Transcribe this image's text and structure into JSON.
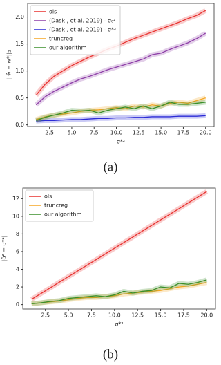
{
  "chart_data": [
    {
      "type": "line",
      "caption": "(a)",
      "x_label": "σ*²",
      "y_label": "||ŵ − w*||₂",
      "legend": "upper left",
      "x": [
        1,
        2,
        3,
        4,
        5,
        6,
        7,
        8,
        9,
        10,
        11,
        12,
        13,
        14,
        15,
        16,
        17,
        18,
        19,
        20
      ],
      "xlim": [
        0.05,
        20.95
      ],
      "ylim": [
        -0.03,
        2.25
      ],
      "xticks": [
        2.5,
        {
          "value": 5,
          "label": "5.0"
        },
        7.5,
        {
          "value": 10,
          "label": "10.0"
        },
        12.5,
        {
          "value": 15,
          "label": "15.0"
        },
        17.5,
        {
          "value": 20,
          "label": "20.0"
        }
      ],
      "yticks": [
        {
          "value": 0,
          "label": "0.0"
        },
        0.5,
        {
          "value": 1,
          "label": "1.0"
        },
        1.5,
        {
          "value": 2,
          "label": "2.0"
        }
      ],
      "series": [
        {
          "name": "ols",
          "color": "#e8312f",
          "values": [
            0.55,
            0.75,
            0.9,
            1.0,
            1.1,
            1.18,
            1.26,
            1.33,
            1.4,
            1.46,
            1.53,
            1.6,
            1.66,
            1.72,
            1.78,
            1.84,
            1.9,
            1.97,
            2.03,
            2.12
          ]
        },
        {
          "name": "(Dask , et al. 2019) - σ₀²",
          "color": "#8e3fa8",
          "values": [
            0.37,
            0.52,
            0.62,
            0.7,
            0.78,
            0.85,
            0.9,
            0.96,
            1.02,
            1.07,
            1.12,
            1.17,
            1.22,
            1.3,
            1.33,
            1.4,
            1.46,
            1.52,
            1.6,
            1.7
          ]
        },
        {
          "name": "(Dask , et al. 2019) - σ*²",
          "color": "#2b2bd6",
          "values": [
            0.07,
            0.08,
            0.08,
            0.09,
            0.1,
            0.1,
            0.11,
            0.12,
            0.12,
            0.13,
            0.13,
            0.14,
            0.14,
            0.15,
            0.15,
            0.15,
            0.16,
            0.16,
            0.16,
            0.17
          ]
        },
        {
          "name": "truncreg",
          "color": "#f5a623",
          "values": [
            0.1,
            0.15,
            0.18,
            0.2,
            0.22,
            0.25,
            0.27,
            0.28,
            0.3,
            0.32,
            0.3,
            0.35,
            0.33,
            0.37,
            0.35,
            0.4,
            0.42,
            0.4,
            0.45,
            0.5
          ]
        },
        {
          "name": "our algorithm",
          "color": "#3a8f2a",
          "values": [
            0.08,
            0.14,
            0.18,
            0.22,
            0.27,
            0.26,
            0.27,
            0.22,
            0.27,
            0.3,
            0.33,
            0.3,
            0.35,
            0.3,
            0.35,
            0.42,
            0.38,
            0.38,
            0.4,
            0.42
          ]
        }
      ]
    },
    {
      "type": "line",
      "caption": "(b)",
      "x_label": "σ*²",
      "y_label": "|σ̂² − σ*²|",
      "legend": "upper left",
      "x": [
        1,
        2,
        3,
        4,
        5,
        6,
        7,
        8,
        9,
        10,
        11,
        12,
        13,
        14,
        15,
        16,
        17,
        18,
        19,
        20
      ],
      "xlim": [
        0.05,
        20.95
      ],
      "ylim": [
        -0.5,
        13.2
      ],
      "xticks": [
        2.5,
        {
          "value": 5,
          "label": "5.0"
        },
        7.5,
        {
          "value": 10,
          "label": "10.0"
        },
        12.5,
        {
          "value": 15,
          "label": "15.0"
        },
        17.5,
        {
          "value": 20,
          "label": "20.0"
        }
      ],
      "yticks": [
        0,
        2,
        4,
        6,
        8,
        10,
        12
      ],
      "series": [
        {
          "name": "ols",
          "color": "#e8312f",
          "values": [
            0.6,
            1.24,
            1.88,
            2.53,
            3.17,
            3.81,
            4.45,
            5.09,
            5.74,
            6.38,
            7.02,
            7.66,
            8.31,
            8.95,
            9.59,
            10.23,
            10.87,
            11.52,
            12.16,
            12.8
          ]
        },
        {
          "name": "truncreg",
          "color": "#f5a623",
          "values": [
            0.1,
            0.2,
            0.3,
            0.4,
            0.55,
            0.7,
            0.8,
            0.8,
            0.9,
            1.0,
            1.2,
            1.3,
            1.4,
            1.5,
            1.6,
            1.8,
            2.0,
            2.1,
            2.3,
            2.5
          ]
        },
        {
          "name": "our algorithm",
          "color": "#3a8f2a",
          "values": [
            0.1,
            0.2,
            0.35,
            0.45,
            0.7,
            0.8,
            0.9,
            1.0,
            0.9,
            1.1,
            1.5,
            1.3,
            1.5,
            1.6,
            2.0,
            1.9,
            2.4,
            2.3,
            2.5,
            2.8
          ]
        }
      ]
    }
  ]
}
